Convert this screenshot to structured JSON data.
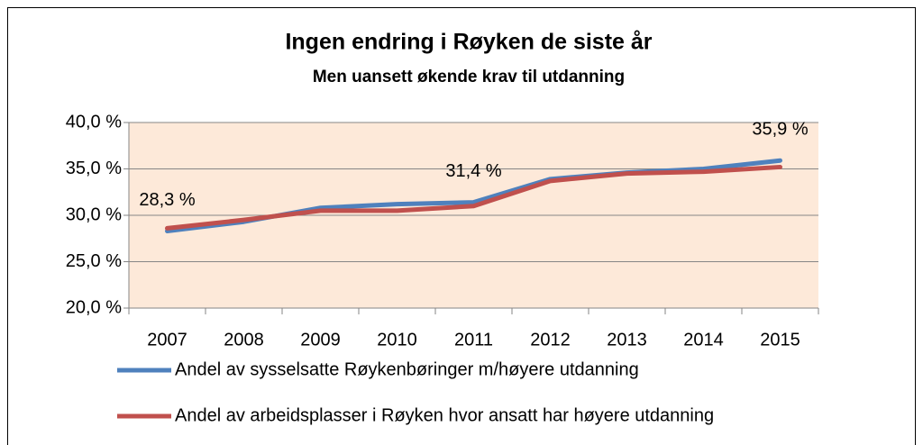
{
  "chart_data": {
    "type": "line",
    "title": "Ingen endring i Røyken de siste år",
    "subtitle": "Men uansett økende krav til utdanning",
    "categories": [
      "2007",
      "2008",
      "2009",
      "2010",
      "2011",
      "2012",
      "2013",
      "2014",
      "2015"
    ],
    "series": [
      {
        "name": "Andel av sysselsatte Røykenbøringer m/høyere utdanning",
        "color": "#4f81bd",
        "values": [
          28.3,
          29.3,
          30.8,
          31.2,
          31.4,
          33.9,
          34.6,
          35.0,
          35.9
        ],
        "value_labels": [
          "28,3 %",
          null,
          null,
          null,
          "31,4 %",
          null,
          null,
          null,
          "35,9 %"
        ]
      },
      {
        "name": "Andel av arbeidsplasser i Røyken hvor ansatt har høyere utdanning",
        "color": "#c0504d",
        "values": [
          28.6,
          29.5,
          30.5,
          30.5,
          31.0,
          33.7,
          34.5,
          34.7,
          35.2
        ]
      }
    ],
    "ylim": [
      20,
      40
    ],
    "yticks": [
      {
        "value": 20,
        "label": "20,0 %"
      },
      {
        "value": 25,
        "label": "25,0 %"
      },
      {
        "value": 30,
        "label": "30,0 %"
      },
      {
        "value": 35,
        "label": "35,0 %"
      },
      {
        "value": 40,
        "label": "40,0 %"
      }
    ],
    "grid": true,
    "plot_background": "#fde9d9"
  }
}
